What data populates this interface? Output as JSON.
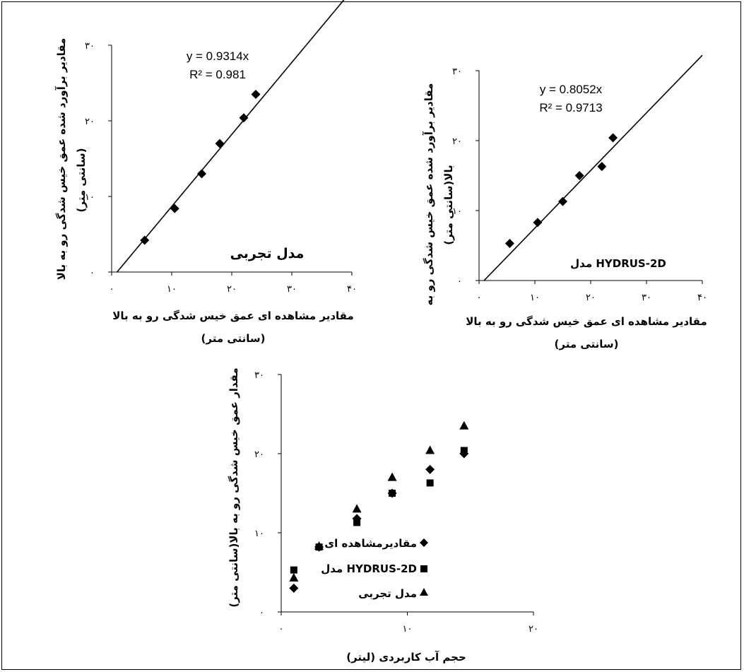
{
  "chart_data": [
    {
      "type": "scatter",
      "xlabel": "مقادیر مشاهده ای عمق خیس شدگی رو به بالا",
      "xlabel2": "(سانتی متر)",
      "ylabel": "مقادیر برآورد شده عمق خیس شدگی رو به بالا",
      "ylabel2": "(سانتی متر)",
      "xlim": [
        0,
        40
      ],
      "ylim": [
        0,
        30
      ],
      "xticks": [
        "۰",
        "۱۰",
        "۲۰",
        "۳۰",
        "۴۰"
      ],
      "yticks": [
        "۰",
        "۱۰",
        "۲۰",
        "۳۰"
      ],
      "series": [
        {
          "x": [
            5.5,
            10.5,
            15,
            18,
            22,
            24
          ],
          "y": [
            4.2,
            8.4,
            13,
            17,
            20.4,
            23.5
          ]
        }
      ],
      "fit": {
        "slope": 0.9314,
        "equation": "y = 0.9314x",
        "r2": "R² = 0.981"
      },
      "annotation": "مدل تجربی"
    },
    {
      "type": "scatter",
      "xlabel": "مقادیر مشاهده ای عمق خیس شدگی رو به بالا",
      "xlabel2": "(سانتی متر)",
      "ylabel": "مقادیر برآورد شده عمق خیس شدگی رو به",
      "ylabel2": "بالا(سانتی متر)",
      "xlim": [
        0,
        40
      ],
      "ylim": [
        0,
        30
      ],
      "xticks": [
        "۰",
        "۱۰",
        "۲۰",
        "۳۰",
        "۴۰"
      ],
      "yticks": [
        "۰",
        "۱۰",
        "۲۰",
        "۳۰"
      ],
      "series": [
        {
          "x": [
            5.5,
            10.5,
            15,
            18,
            22,
            24
          ],
          "y": [
            5.3,
            8.3,
            11.3,
            15,
            16.3,
            20.4
          ]
        }
      ],
      "fit": {
        "slope": 0.8052,
        "equation": "y = 0.8052x",
        "r2": "R² = 0.9713"
      },
      "annotation": "مدل HYDRUS-2D"
    },
    {
      "type": "scatter",
      "xlabel": "حجم آب کاربردی (لیتر)",
      "ylabel": "مقدار عمق خیس شدگی رو به بالا(سانتی متر)",
      "xlim": [
        0,
        20
      ],
      "ylim": [
        0,
        30
      ],
      "xticks": [
        "۰",
        "۱۰",
        "۲۰"
      ],
      "yticks": [
        "۰",
        "۱۰",
        "۲۰",
        "۳۰"
      ],
      "series": [
        {
          "name": "مقادیرمشاهده ای",
          "marker": "diamond",
          "x": [
            1,
            3,
            6,
            8.8,
            11.8,
            14.5
          ],
          "y": [
            3,
            8.2,
            11.8,
            15,
            18,
            20
          ]
        },
        {
          "name": "مدل HYDRUS-2D",
          "marker": "square",
          "x": [
            1,
            3,
            6,
            8.8,
            11.8,
            14.5
          ],
          "y": [
            5.3,
            8.2,
            11.3,
            15,
            16.3,
            20.4
          ]
        },
        {
          "name": "مدل تجربی",
          "marker": "triangle",
          "x": [
            1,
            3,
            6,
            8.8,
            11.8,
            14.5
          ],
          "y": [
            4.3,
            8.3,
            13,
            17,
            20.4,
            23.5
          ]
        }
      ],
      "legend": "right"
    }
  ]
}
